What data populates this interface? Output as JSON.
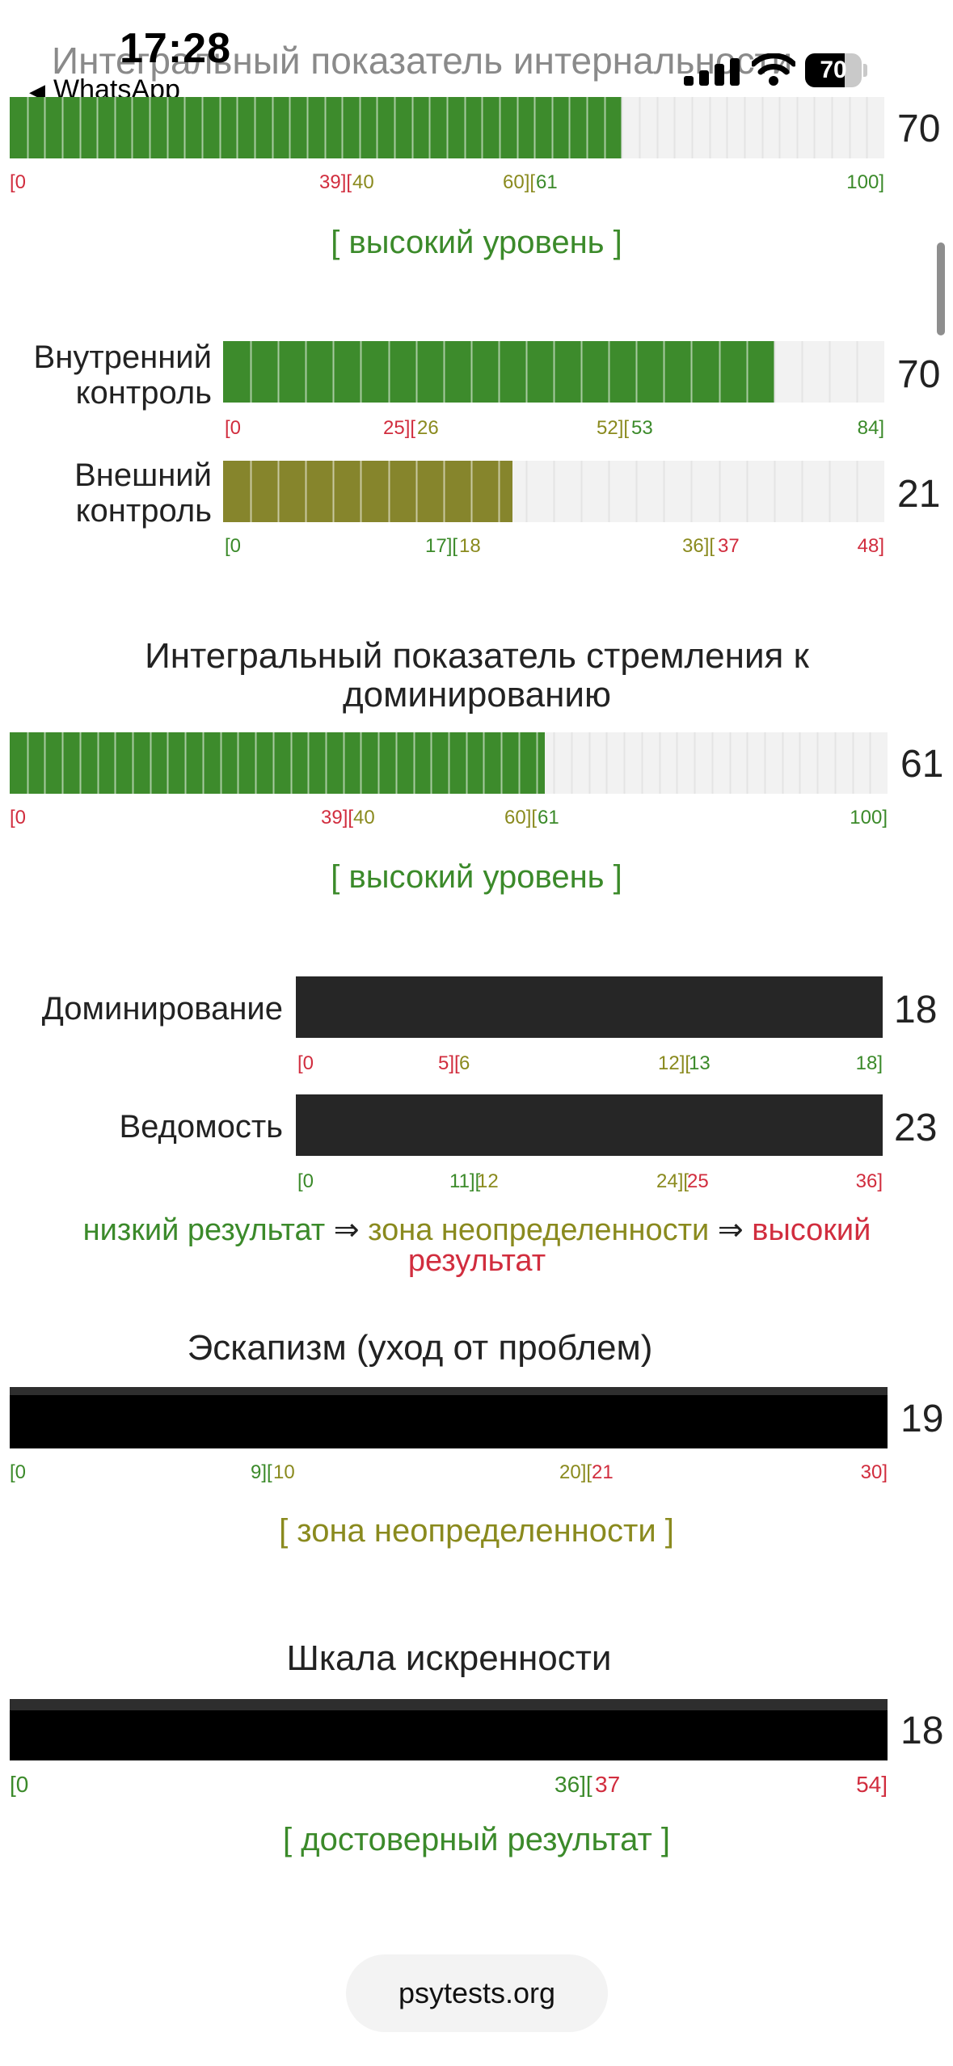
{
  "status_bar": {
    "time": "17:28",
    "back_label": "WhatsApp",
    "battery": "70",
    "battery_level": 0.7
  },
  "faded_title": "Интегральный показатель интернальности",
  "sections": {
    "internality": {
      "score": "70",
      "value": 70,
      "max": 100,
      "fill_color": "#3d8b2c",
      "ticks": [
        "[0",
        "39][",
        "40",
        "60][",
        "61",
        "100]"
      ],
      "level": "[ высокий уровень ]"
    },
    "internal_control": {
      "label": "Внутренний\nконтроль",
      "score": "70",
      "value": 70,
      "max": 84,
      "fill_color": "#3d8b2c",
      "ticks": [
        "[0",
        "25][",
        "26",
        "52][",
        "53",
        "84]"
      ]
    },
    "external_control": {
      "label": "Внешний\nконтроль",
      "score": "21",
      "value": 21,
      "max": 48,
      "fill_color": "#86852c",
      "ticks": [
        "[0",
        "17][",
        "18",
        "36][",
        "37",
        "48]"
      ]
    },
    "dominance_integral": {
      "title": "Интегральный показатель стремления к доминированию",
      "score": "61",
      "value": 61,
      "max": 100,
      "fill_color": "#3d8b2c",
      "ticks": [
        "[0",
        "39][",
        "40",
        "60][",
        "61",
        "100]"
      ],
      "level": "[ высокий уровень ]"
    },
    "dominance": {
      "label": "Доминирование",
      "score": "18",
      "ticks": [
        "[0",
        "5][",
        "6",
        "12][",
        "13",
        "18]"
      ]
    },
    "submission": {
      "label": "Ведомость",
      "score": "23",
      "ticks": [
        "[0",
        "11][",
        "12",
        "24][",
        "25",
        "36]"
      ]
    },
    "legend": {
      "low": "низкий результат",
      "arrow": " ⇒ ",
      "mid": "зона неопределенности",
      "high": "высокий результат"
    },
    "escapism": {
      "title": "Эскапизм (уход от проблем)",
      "score": "19",
      "ticks": [
        "[0",
        "9][",
        "10",
        "20][",
        "21",
        "30]"
      ],
      "level": "[ зона неопределенности ]"
    },
    "sincerity": {
      "title": "Шкала искренности",
      "score": "18",
      "ticks": [
        "[0",
        "36][",
        "37",
        "54]"
      ],
      "level": "[ достоверный результат ]"
    }
  },
  "footer": {
    "site": "psytests.org"
  }
}
